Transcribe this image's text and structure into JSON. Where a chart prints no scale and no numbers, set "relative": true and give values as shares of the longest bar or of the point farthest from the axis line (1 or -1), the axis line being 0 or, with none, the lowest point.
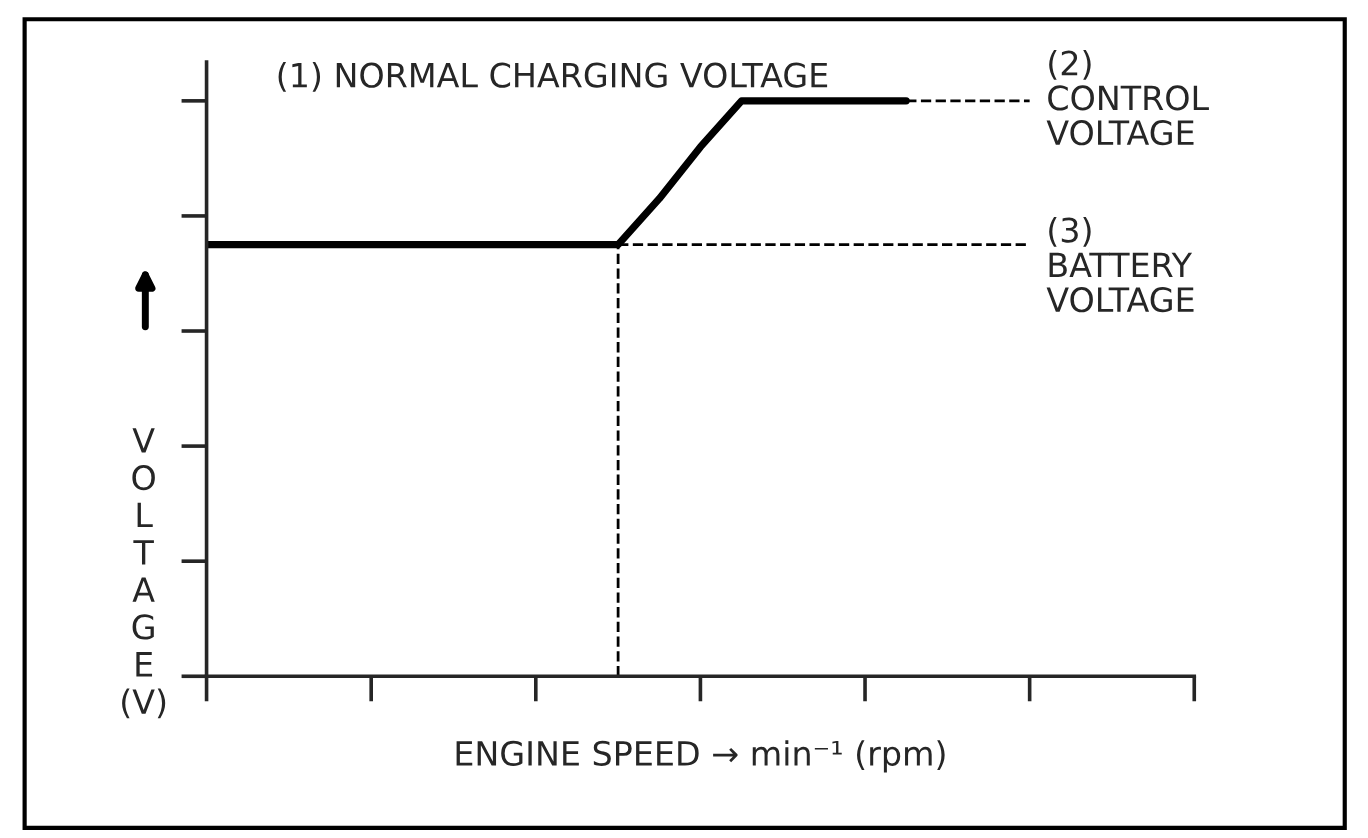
{
  "chart_data": {
    "type": "line",
    "relative": true,
    "title": "(1) NORMAL CHARGING VOLTAGE",
    "xlabel": "ENGINE SPEED → min⁻¹ (rpm)",
    "ylabel": "VOLTAGE (V)",
    "categories": [
      null,
      null,
      null,
      null,
      null,
      null,
      null,
      null,
      null,
      null,
      null,
      null,
      null,
      null,
      null,
      null,
      null,
      null,
      null,
      null,
      null,
      null,
      null,
      null,
      null
    ],
    "series": [
      {
        "color": "#000000",
        "values": [
          0.75,
          0.75,
          0.75,
          0.75,
          0.75,
          0.75,
          0.75,
          0.75,
          0.75,
          0.75,
          0.75,
          0.83,
          0.92,
          1,
          1,
          1,
          1,
          1,
          null,
          null,
          null,
          null,
          null,
          null,
          null
        ],
        "line_style": "solid"
      },
      {
        "color": "#000000",
        "values": [
          null,
          null,
          null,
          null,
          null,
          null,
          null,
          null,
          null,
          null,
          null,
          null,
          null,
          null,
          null,
          null,
          null,
          1,
          1,
          1,
          1,
          null,
          null,
          null,
          null
        ],
        "line_style": "dashed"
      },
      {
        "color": "#000000",
        "values": [
          null,
          null,
          null,
          null,
          null,
          null,
          null,
          null,
          null,
          null,
          0.75,
          0.75,
          0.75,
          0.75,
          0.75,
          0.75,
          0.75,
          0.75,
          0.75,
          0.75,
          0.75,
          null,
          null,
          null,
          null
        ],
        "line_style": "dashed"
      }
    ],
    "annotations": [
      "(2)\nCONTROL\nVOLTAGE",
      "(3)\nBATTERY\nVOLTAGE"
    ],
    "tick_labels": false
  }
}
